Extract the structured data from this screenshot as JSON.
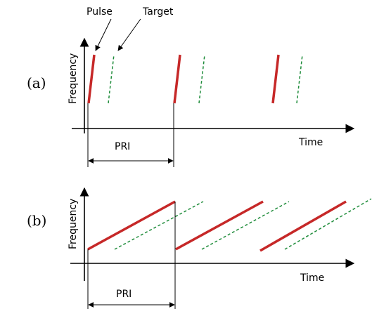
{
  "labels": {
    "pulse": "Pulse",
    "target": "Target"
  },
  "panel_a": {
    "tag": "(a)",
    "y_axis_label": "Frequency",
    "x_axis_label": "Time",
    "interval_label": "PRI"
  },
  "panel_b": {
    "tag": "(b)",
    "y_axis_label": "Frequency",
    "x_axis_label": "Time",
    "interval_label": "PRI"
  },
  "colors": {
    "pulse": "#c62828",
    "target": "#1e8c3a"
  }
}
